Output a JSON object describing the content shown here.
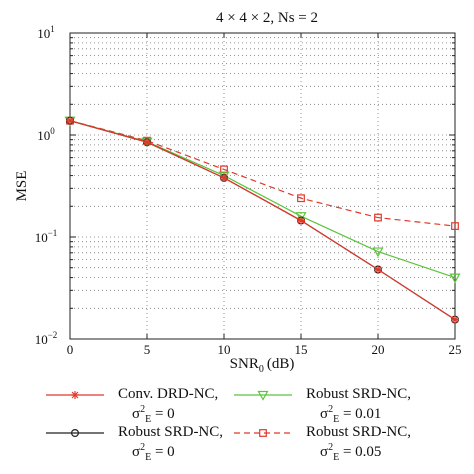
{
  "chart_data": {
    "type": "line",
    "title": "4 × 4 × 2, Ns = 2",
    "xlabel": "SNR",
    "xlabel_sub": "0",
    "xlabel_unit": "(dB)",
    "ylabel": "MSE",
    "x": [
      0,
      5,
      10,
      15,
      20,
      25
    ],
    "xlim": [
      0,
      25
    ],
    "ylim": [
      0.01,
      10
    ],
    "yscale": "log",
    "grid": true,
    "legend_position": "bottom",
    "x_ticks": [
      "0",
      "5",
      "10",
      "15",
      "20",
      "25"
    ],
    "y_ticks": [
      {
        "value": 10,
        "base": "10",
        "exp": "1"
      },
      {
        "value": 1,
        "base": "10",
        "exp": "0"
      },
      {
        "value": 0.1,
        "base": "10",
        "exp": "−1"
      },
      {
        "value": 0.01,
        "base": "10",
        "exp": "−2"
      }
    ],
    "series": [
      {
        "name": "Conv. DRD-NC,",
        "sigma_value": "= 0",
        "color": "#e0392b",
        "dash": "solid",
        "marker": "star",
        "values": [
          1.38,
          0.85,
          0.38,
          0.145,
          0.048,
          0.0155
        ]
      },
      {
        "name": "Robust SRD-NC,",
        "sigma_value": "= 0",
        "color": "#222222",
        "dash": "solid",
        "marker": "circle",
        "values": [
          1.38,
          0.85,
          0.38,
          0.145,
          0.048,
          0.0155
        ]
      },
      {
        "name": "Robust SRD-NC,",
        "sigma_value": "= 0.01",
        "color": "#5cc43c",
        "dash": "solid",
        "marker": "triangle-down",
        "values": [
          1.38,
          0.86,
          0.4,
          0.16,
          0.072,
          0.04
        ]
      },
      {
        "name": "Robust SRD-NC,",
        "sigma_value": "= 0.05",
        "color": "#e0392b",
        "dash": "dashed",
        "marker": "square",
        "values": [
          1.38,
          0.88,
          0.46,
          0.24,
          0.155,
          0.128
        ]
      }
    ]
  },
  "legend": {
    "sigma_symbol": "σ",
    "sigma_sup": "2",
    "sigma_sub": "E"
  }
}
